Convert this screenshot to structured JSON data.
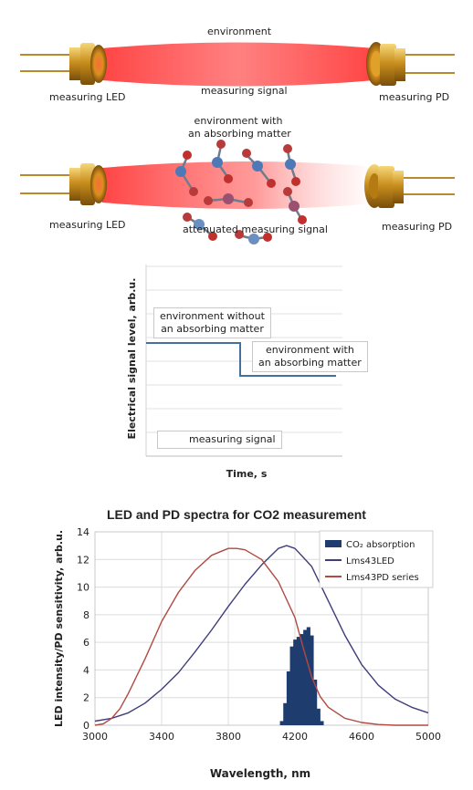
{
  "top_diagram": {
    "environment_label": "environment",
    "signal_label": "measuring signal",
    "led_label": "measuring LED",
    "pd_label": "measuring PD"
  },
  "middle_diagram": {
    "environment_label_line1": "environment with",
    "environment_label_line2": "an absorbing matter",
    "signal_label": "attenuated measuring signal",
    "led_label": "measuring LED",
    "pd_label": "measuring PD"
  },
  "signal_chart": {
    "ylabel": "Electrical signal level, arb.u.",
    "xlabel": "Time, s",
    "box_without_line1": "environment without",
    "box_without_line2": "an absorbing matter",
    "box_with_line1": "environment with",
    "box_with_line2": "an absorbing matter",
    "legend_label": "measuring signal",
    "line_color": "#41719c"
  },
  "chart_data": {
    "type": "line",
    "title": "LED and PD spectra for CO2 measurement",
    "xlabel": "Wavelength, nm",
    "ylabel": "LED intensity/PD sensitivity, arb.u.",
    "xlim": [
      3000,
      5000
    ],
    "ylim": [
      0,
      14
    ],
    "x_ticks": [
      3000,
      3400,
      3800,
      4200,
      4600,
      5000
    ],
    "y_ticks": [
      0,
      2,
      4,
      6,
      8,
      10,
      12,
      14
    ],
    "grid": true,
    "legend_position": "top-right",
    "series": [
      {
        "name": "CO₂ absorption",
        "style": "bars",
        "color": "#1f3c6e",
        "x": [
          4120,
          4140,
          4160,
          4180,
          4200,
          4220,
          4240,
          4260,
          4280,
          4300,
          4320,
          4340,
          4360
        ],
        "values": [
          0.3,
          1.6,
          3.9,
          5.7,
          6.2,
          6.4,
          6.6,
          6.9,
          7.1,
          6.5,
          3.3,
          1.2,
          0.3
        ]
      },
      {
        "name": "Lms43LED",
        "style": "line",
        "color": "#3f3d7a",
        "x": [
          3000,
          3100,
          3200,
          3300,
          3400,
          3500,
          3600,
          3700,
          3800,
          3900,
          4000,
          4100,
          4150,
          4200,
          4300,
          4400,
          4500,
          4600,
          4700,
          4800,
          4900,
          5000
        ],
        "values": [
          0.3,
          0.5,
          0.9,
          1.6,
          2.6,
          3.8,
          5.3,
          6.9,
          8.6,
          10.2,
          11.6,
          12.8,
          13.0,
          12.8,
          11.5,
          9.0,
          6.5,
          4.4,
          2.9,
          1.9,
          1.3,
          0.9
        ]
      },
      {
        "name": "Lms43PD series",
        "style": "line",
        "color": "#b04a42",
        "x": [
          3000,
          3050,
          3100,
          3150,
          3200,
          3300,
          3400,
          3500,
          3600,
          3700,
          3800,
          3850,
          3900,
          4000,
          4100,
          4200,
          4250,
          4300,
          4350,
          4400,
          4500,
          4600,
          4700,
          4800,
          4900,
          5000
        ],
        "values": [
          0.0,
          0.1,
          0.5,
          1.2,
          2.3,
          4.8,
          7.5,
          9.6,
          11.2,
          12.3,
          12.8,
          12.8,
          12.7,
          12.0,
          10.4,
          7.8,
          5.6,
          3.5,
          2.1,
          1.3,
          0.5,
          0.2,
          0.05,
          0.0,
          0.0,
          0.0
        ]
      }
    ]
  }
}
